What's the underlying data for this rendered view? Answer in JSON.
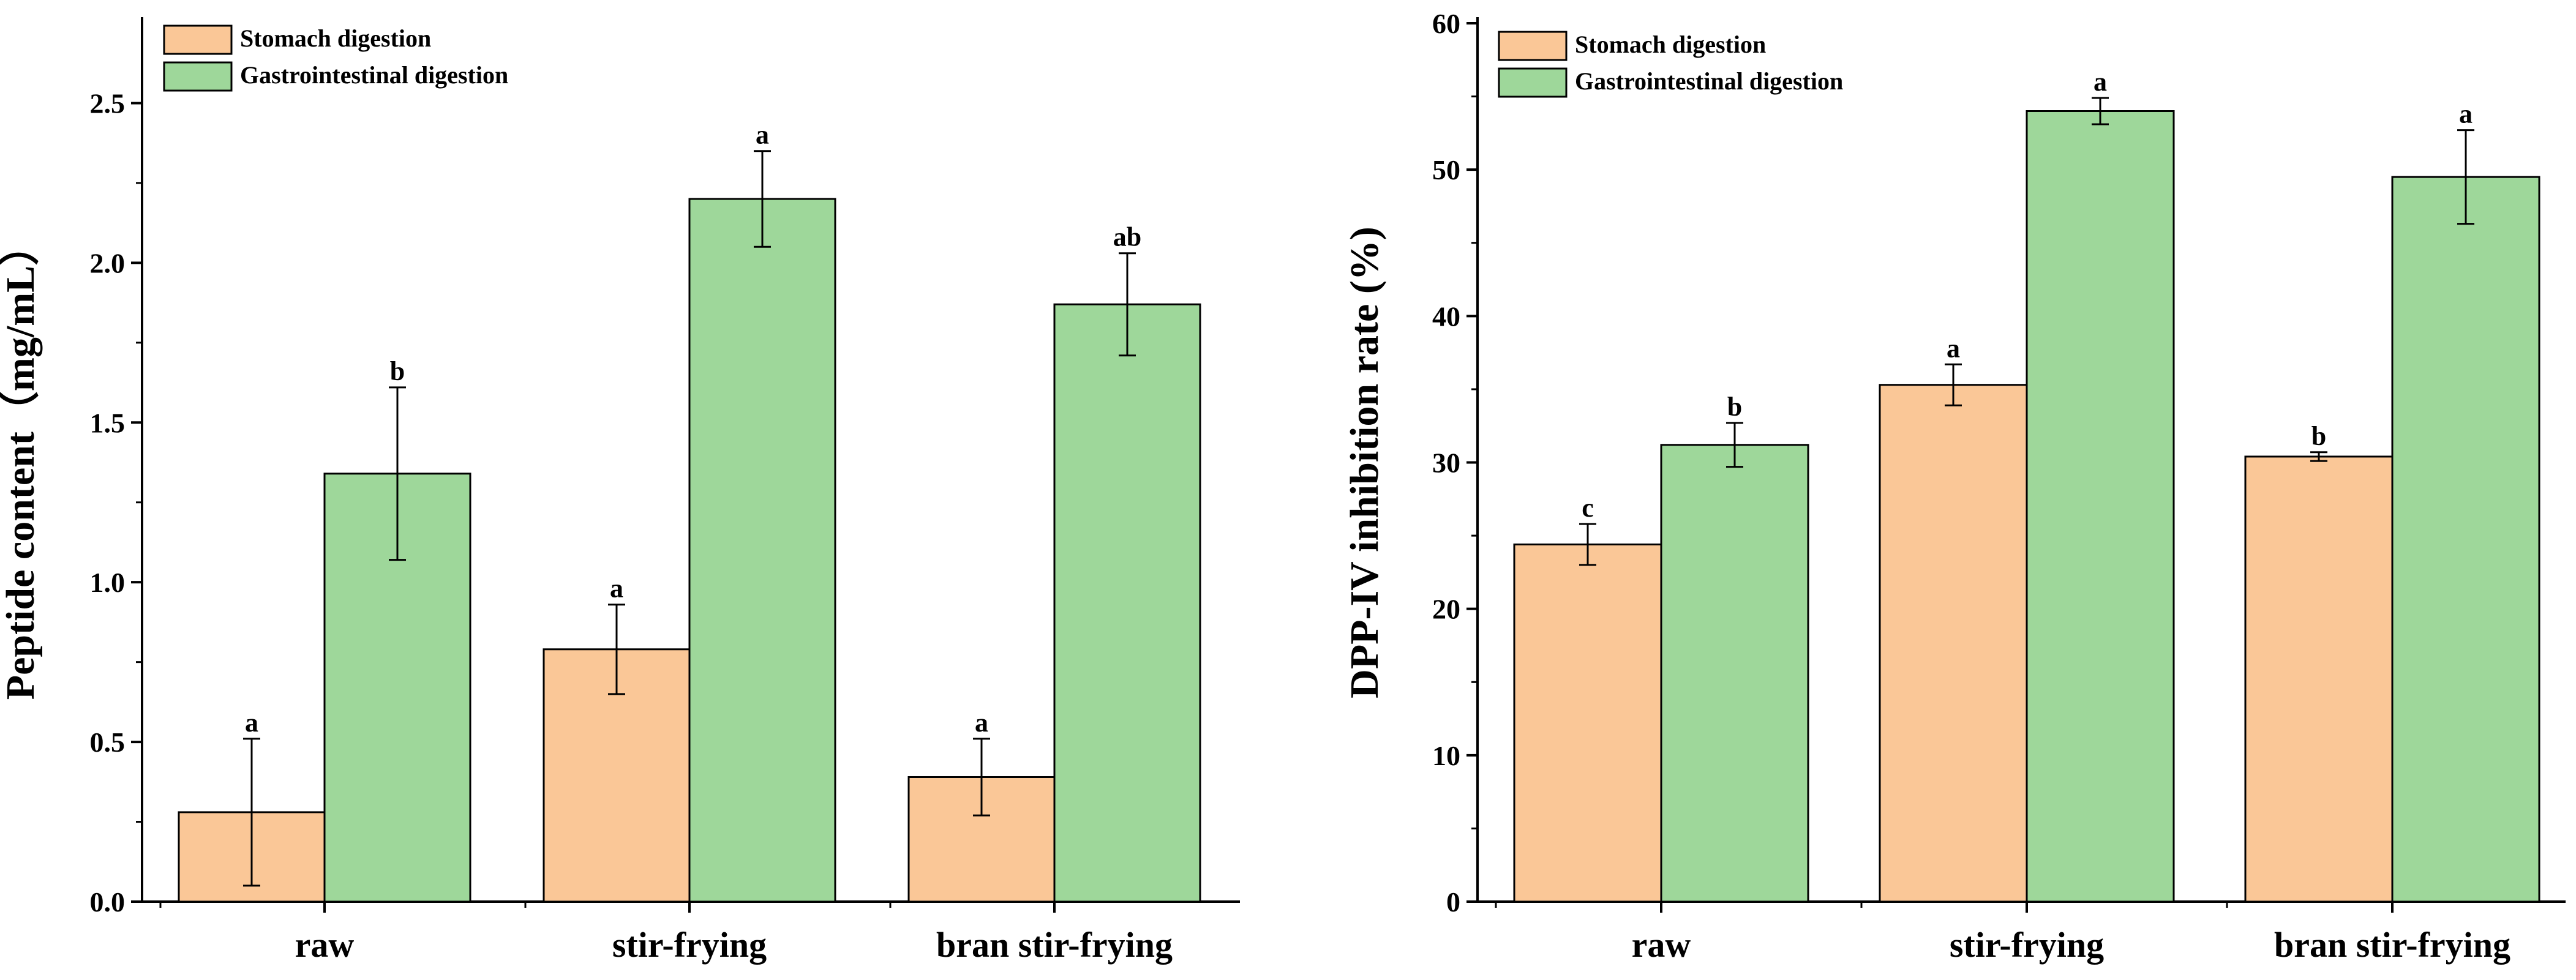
{
  "chart_data": [
    {
      "type": "bar",
      "title": "",
      "xlabel": "",
      "ylabel": "Peptide content（mg/mL）",
      "ylim": [
        0,
        2.75
      ],
      "yticks": [
        "0.0",
        "0.5",
        "1.0",
        "1.5",
        "2.0",
        "2.5"
      ],
      "categories": [
        "raw",
        "stir-frying",
        "bran stir-frying"
      ],
      "legend_position": "top-left",
      "series": [
        {
          "name": "Stomach digestion",
          "color": "#FAC797",
          "values": [
            0.28,
            0.79,
            0.39
          ],
          "errors": [
            0.23,
            0.14,
            0.12
          ],
          "labels": [
            "a",
            "a",
            "a"
          ]
        },
        {
          "name": "Gastrointestinal digestion",
          "color": "#9ED79A",
          "values": [
            1.34,
            2.2,
            1.87
          ],
          "errors": [
            0.27,
            0.15,
            0.16
          ],
          "labels": [
            "b",
            "a",
            "ab"
          ]
        }
      ]
    },
    {
      "type": "bar",
      "title": "",
      "xlabel": "",
      "ylabel": "DPP-IV inhibition rate (%)",
      "ylim": [
        0,
        60
      ],
      "yticks": [
        "0",
        "10",
        "20",
        "30",
        "40",
        "50",
        "60"
      ],
      "categories": [
        "raw",
        "stir-frying",
        "bran stir-frying"
      ],
      "legend_position": "top-left",
      "series": [
        {
          "name": "Stomach digestion",
          "color": "#FAC797",
          "values": [
            24.4,
            35.3,
            30.4
          ],
          "errors": [
            1.4,
            1.4,
            0.3
          ],
          "labels": [
            "c",
            "a",
            "b"
          ]
        },
        {
          "name": "Gastrointestinal digestion",
          "color": "#9ED79A",
          "values": [
            31.2,
            54.0,
            49.5
          ],
          "errors": [
            1.5,
            0.9,
            3.2
          ],
          "labels": [
            "b",
            "a",
            "a"
          ]
        }
      ]
    }
  ]
}
